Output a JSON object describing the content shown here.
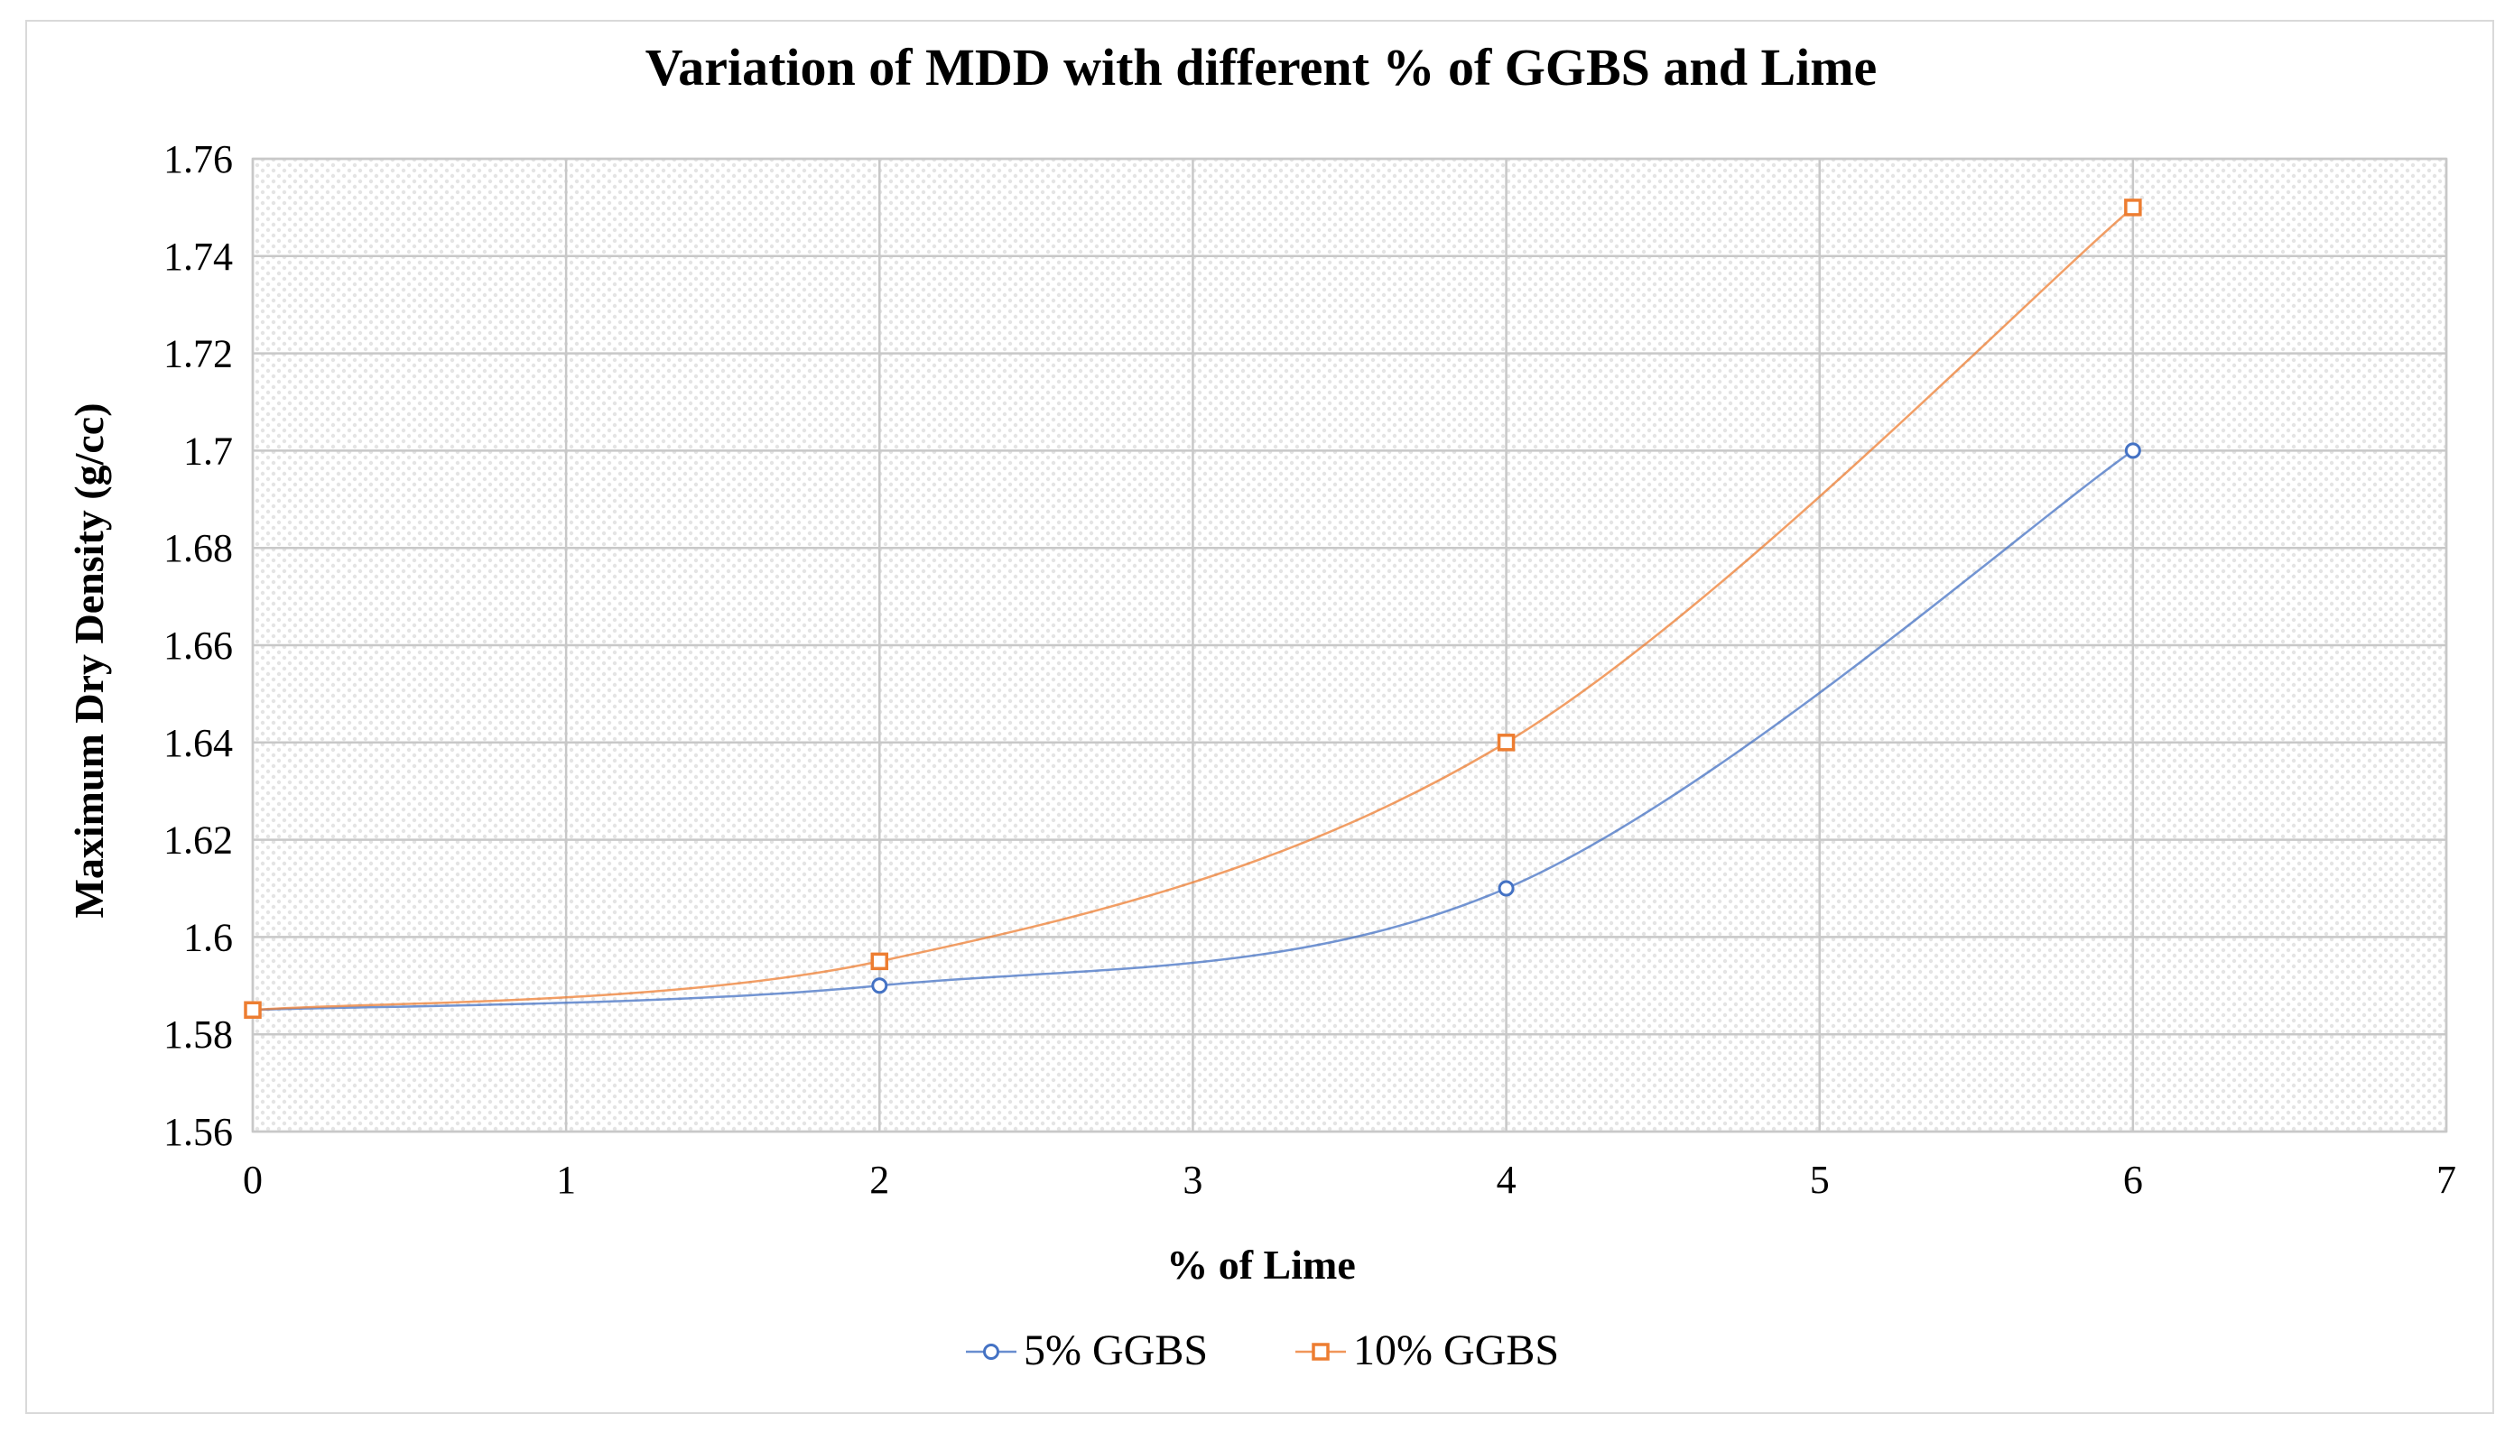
{
  "chart_data": {
    "type": "line",
    "title": "Variation of MDD with different % of GGBS and Lime",
    "xlabel": "% of Lime",
    "ylabel": "Maximum Dry Density (g/cc)",
    "xlim": [
      0,
      7
    ],
    "ylim": [
      1.56,
      1.76
    ],
    "x_ticks": [
      "0",
      "1",
      "2",
      "3",
      "4",
      "5",
      "6",
      "7"
    ],
    "y_ticks": [
      "1.56",
      "1.58",
      "1.6",
      "1.62",
      "1.64",
      "1.66",
      "1.68",
      "1.7",
      "1.72",
      "1.74",
      "1.76"
    ],
    "grid": true,
    "smooth": true,
    "legend_position": "bottom",
    "series": [
      {
        "name": "5% GGBS",
        "marker": "circle",
        "color": "#4472C4",
        "x": [
          0,
          2,
          4,
          6
        ],
        "y": [
          1.585,
          1.59,
          1.61,
          1.7
        ]
      },
      {
        "name": "10% GGBS",
        "marker": "square",
        "color": "#ED7D31",
        "x": [
          0,
          2,
          4,
          6
        ],
        "y": [
          1.585,
          1.595,
          1.64,
          1.75
        ]
      }
    ]
  }
}
